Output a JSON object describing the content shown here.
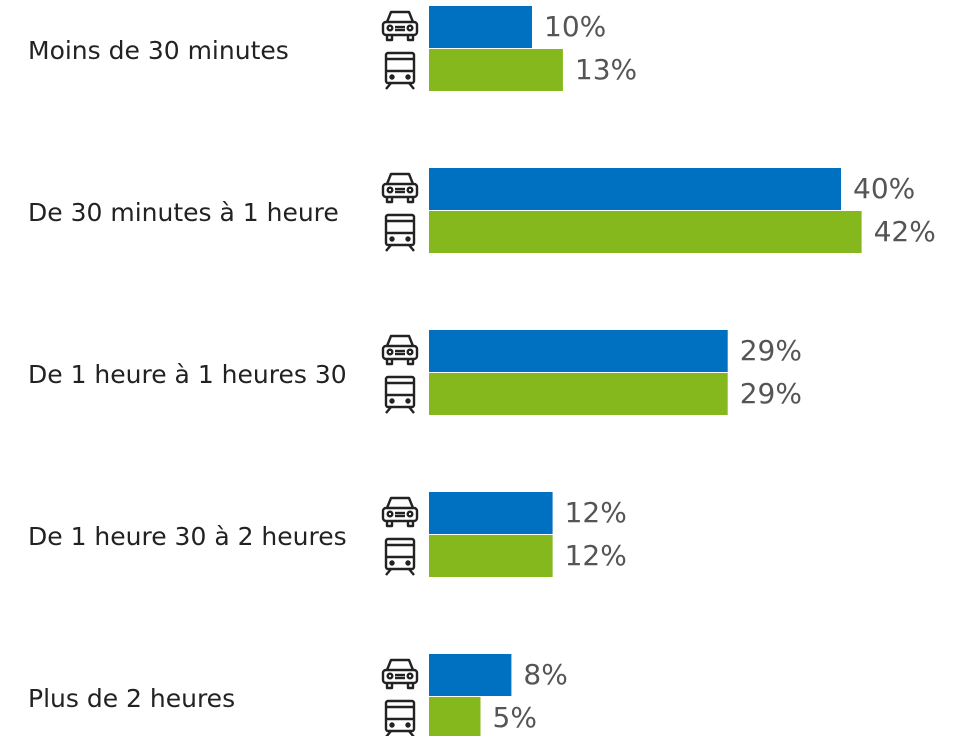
{
  "chart_data": {
    "type": "bar",
    "categories": [
      "Moins de 30 minutes",
      "De 30 minutes à 1 heure",
      "De 1 heure à 1 heures 30",
      "De 1 heure 30 à 2 heures",
      "Plus de 2 heures"
    ],
    "series": [
      {
        "color": "#0070c0",
        "values": [
          10,
          40,
          29,
          12,
          8
        ],
        "value_labels": [
          "10%",
          "40%",
          "29%",
          "12%",
          "8%"
        ]
      },
      {
        "color": "#84b81c",
        "values": [
          13,
          42,
          29,
          12,
          5
        ],
        "value_labels": [
          "13%",
          "42%",
          "29%",
          "12%",
          "5%"
        ]
      }
    ]
  }
}
